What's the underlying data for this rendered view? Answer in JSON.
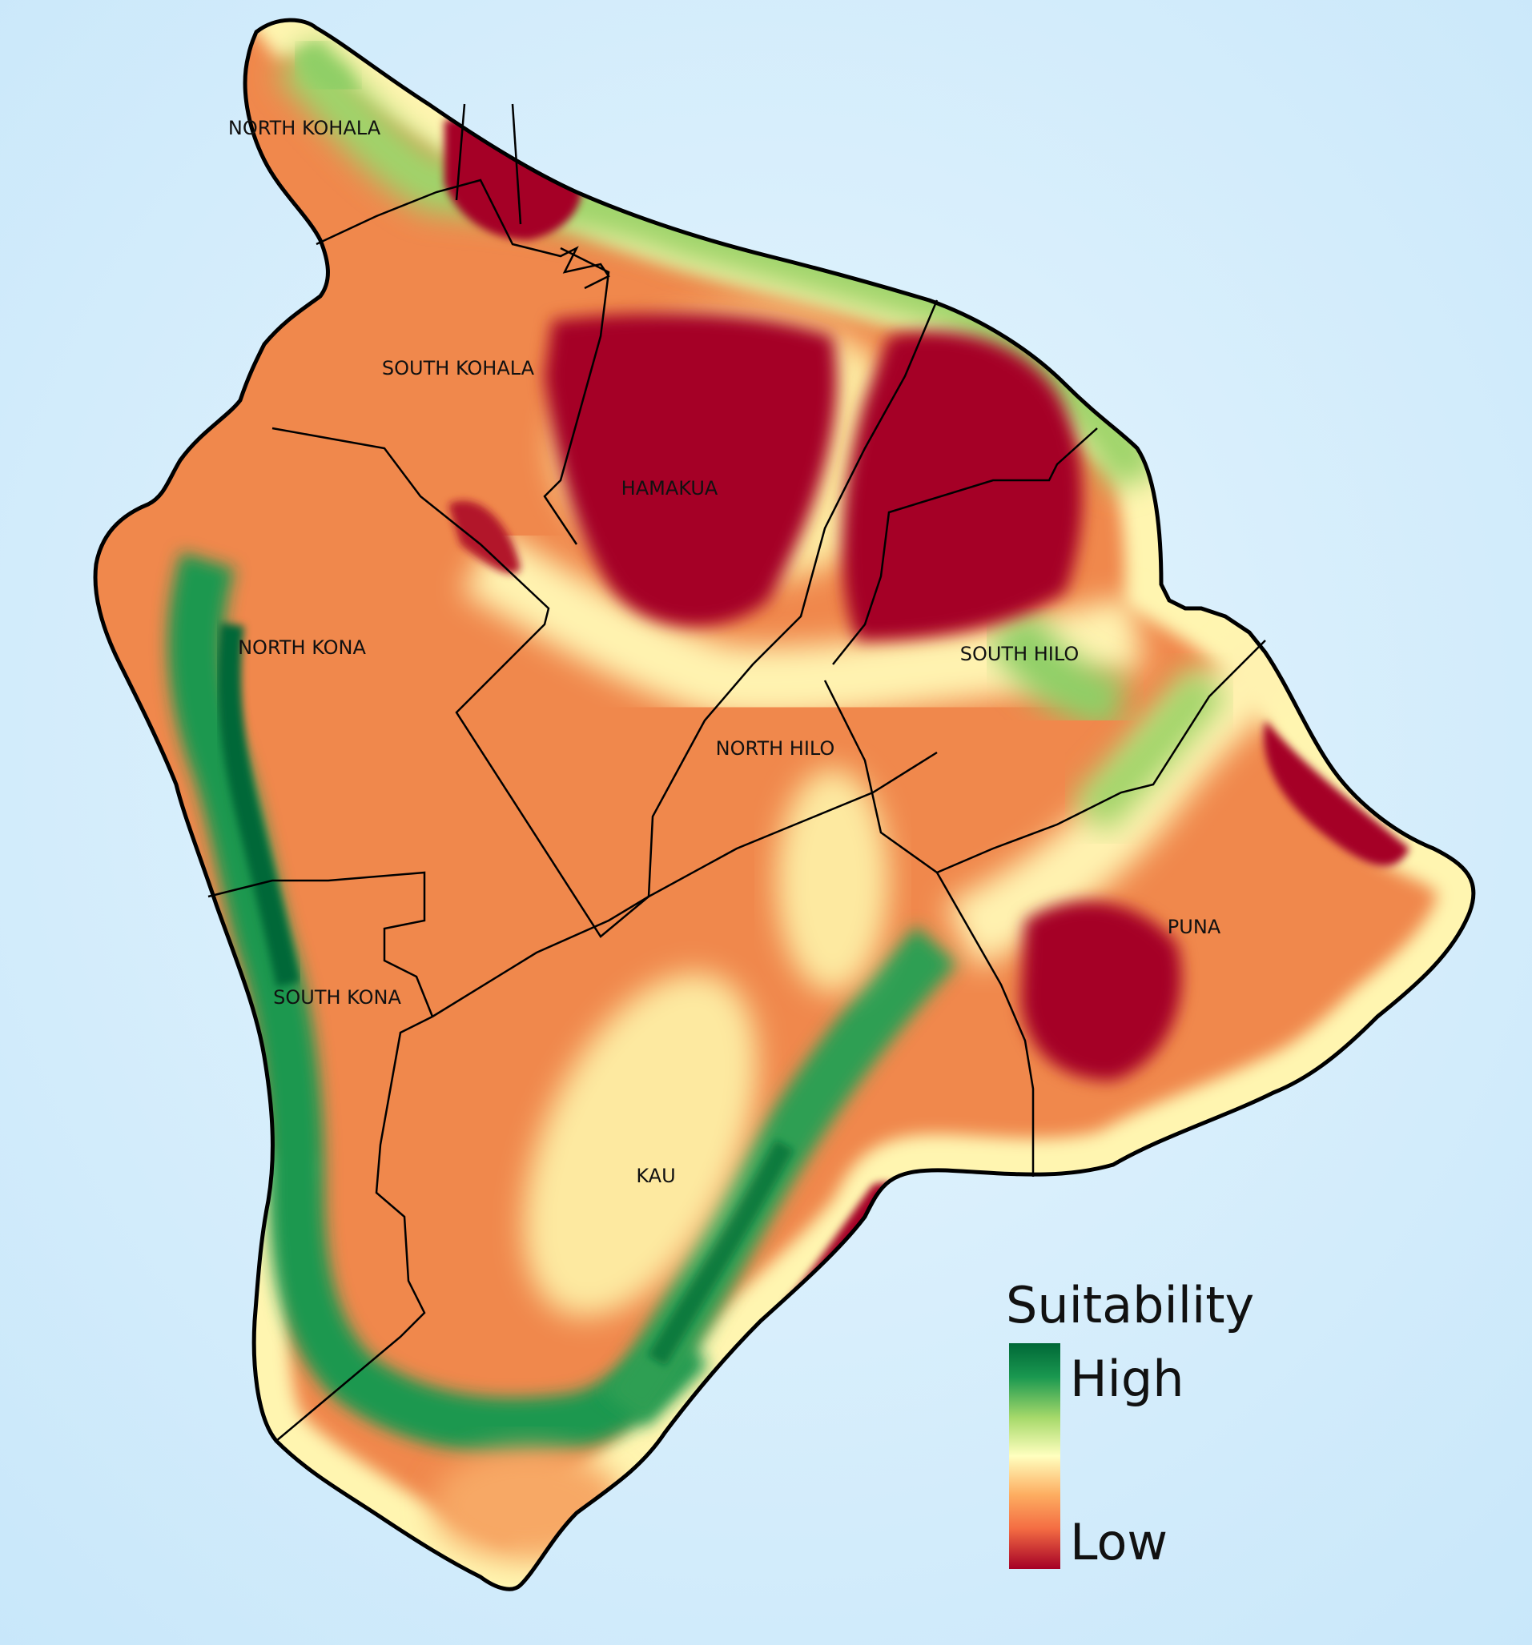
{
  "map": {
    "districts": [
      {
        "id": "north-kohala",
        "label": "NORTH KOHALA"
      },
      {
        "id": "south-kohala",
        "label": "SOUTH KOHALA"
      },
      {
        "id": "hamakua",
        "label": "HAMAKUA"
      },
      {
        "id": "north-kona",
        "label": "NORTH KONA"
      },
      {
        "id": "south-hilo",
        "label": "SOUTH HILO"
      },
      {
        "id": "north-hilo",
        "label": "NORTH HILO"
      },
      {
        "id": "puna",
        "label": "PUNA"
      },
      {
        "id": "south-kona",
        "label": "SOUTH KONA"
      },
      {
        "id": "kau",
        "label": "KAU"
      }
    ]
  },
  "legend": {
    "title": "Suitability",
    "high_label": "High",
    "low_label": "Low",
    "colors": [
      "#006837",
      "#1a9850",
      "#a6d96a",
      "#ffffbf",
      "#fdae61",
      "#f46d43",
      "#a50026"
    ]
  },
  "colors": {
    "ocean": "#d5ecfb",
    "very_low": "#a50026",
    "low": "#f46d43",
    "mid": "#ffffbf",
    "high": "#1a9850",
    "very_high": "#006837"
  }
}
